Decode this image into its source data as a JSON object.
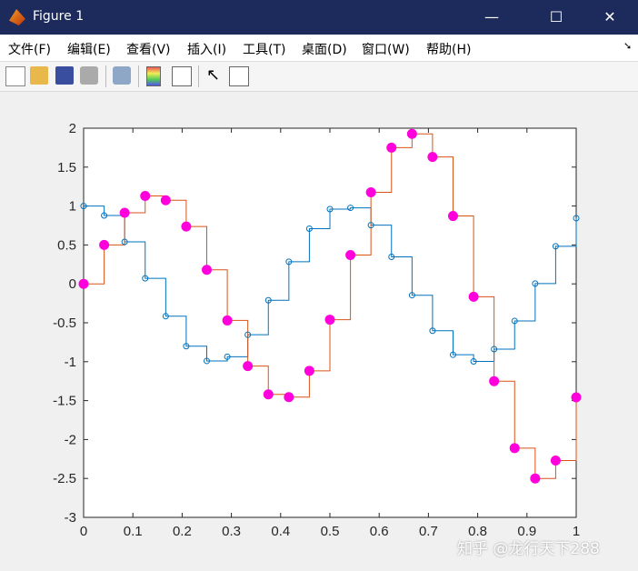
{
  "window": {
    "title": "Figure 1",
    "minimize": "—",
    "maximize": "☐",
    "close": "✕"
  },
  "menu": [
    "文件(F)",
    "编辑(E)",
    "查看(V)",
    "插入(I)",
    "工具(T)",
    "桌面(D)",
    "窗口(W)",
    "帮助(H)"
  ],
  "toolbar": [
    "new-file-icon",
    "open-folder-icon",
    "save-icon",
    "print-icon",
    "print-preview-icon",
    "colorbar-icon",
    "legend-icon",
    "pointer-icon",
    "property-editor-icon"
  ],
  "watermark": "知乎 @龙行天下288",
  "chart_data": {
    "type": "line",
    "style": "stairs",
    "xlim": [
      0,
      1
    ],
    "ylim": [
      -3,
      2
    ],
    "xticks": [
      "0",
      "0.1",
      "0.2",
      "0.3",
      "0.4",
      "0.5",
      "0.6",
      "0.7",
      "0.8",
      "0.9",
      "1"
    ],
    "yticks": [
      "2",
      "1.5",
      "1",
      "0.5",
      "0",
      "-0.5",
      "-1",
      "-1.5",
      "-2",
      "-2.5",
      "-3"
    ],
    "grid": false,
    "x": [
      0,
      0.0417,
      0.0833,
      0.125,
      0.1667,
      0.2083,
      0.25,
      0.2917,
      0.3333,
      0.375,
      0.4167,
      0.4583,
      0.5,
      0.5417,
      0.5833,
      0.625,
      0.6667,
      0.7083,
      0.75,
      0.7917,
      0.8333,
      0.875,
      0.9167,
      0.9583,
      1
    ],
    "series": [
      {
        "color": "#0072BD",
        "marker": "open-circle",
        "marker_color": "#0072BD",
        "values": [
          1,
          0.878,
          0.54,
          0.071,
          -0.416,
          -0.801,
          -0.99,
          -0.936,
          -0.654,
          -0.211,
          0.284,
          0.709,
          0.96,
          0.977,
          0.754,
          0.347,
          -0.146,
          -0.602,
          -0.911,
          -0.997,
          -0.839,
          -0.476,
          0.004,
          0.483,
          0.844
        ]
      },
      {
        "color": "#D95319",
        "marker": "filled-circle",
        "marker_color": "#FF00DD",
        "values": [
          0,
          0.5,
          0.914,
          1.13,
          1.074,
          0.737,
          0.181,
          -0.47,
          -1.056,
          -1.42,
          -1.455,
          -1.117,
          -0.46,
          0.37,
          1.176,
          1.75,
          1.927,
          1.63,
          0.872,
          -0.166,
          -1.25,
          -2.11,
          -2.5,
          -2.27,
          -1.458
        ]
      }
    ]
  }
}
